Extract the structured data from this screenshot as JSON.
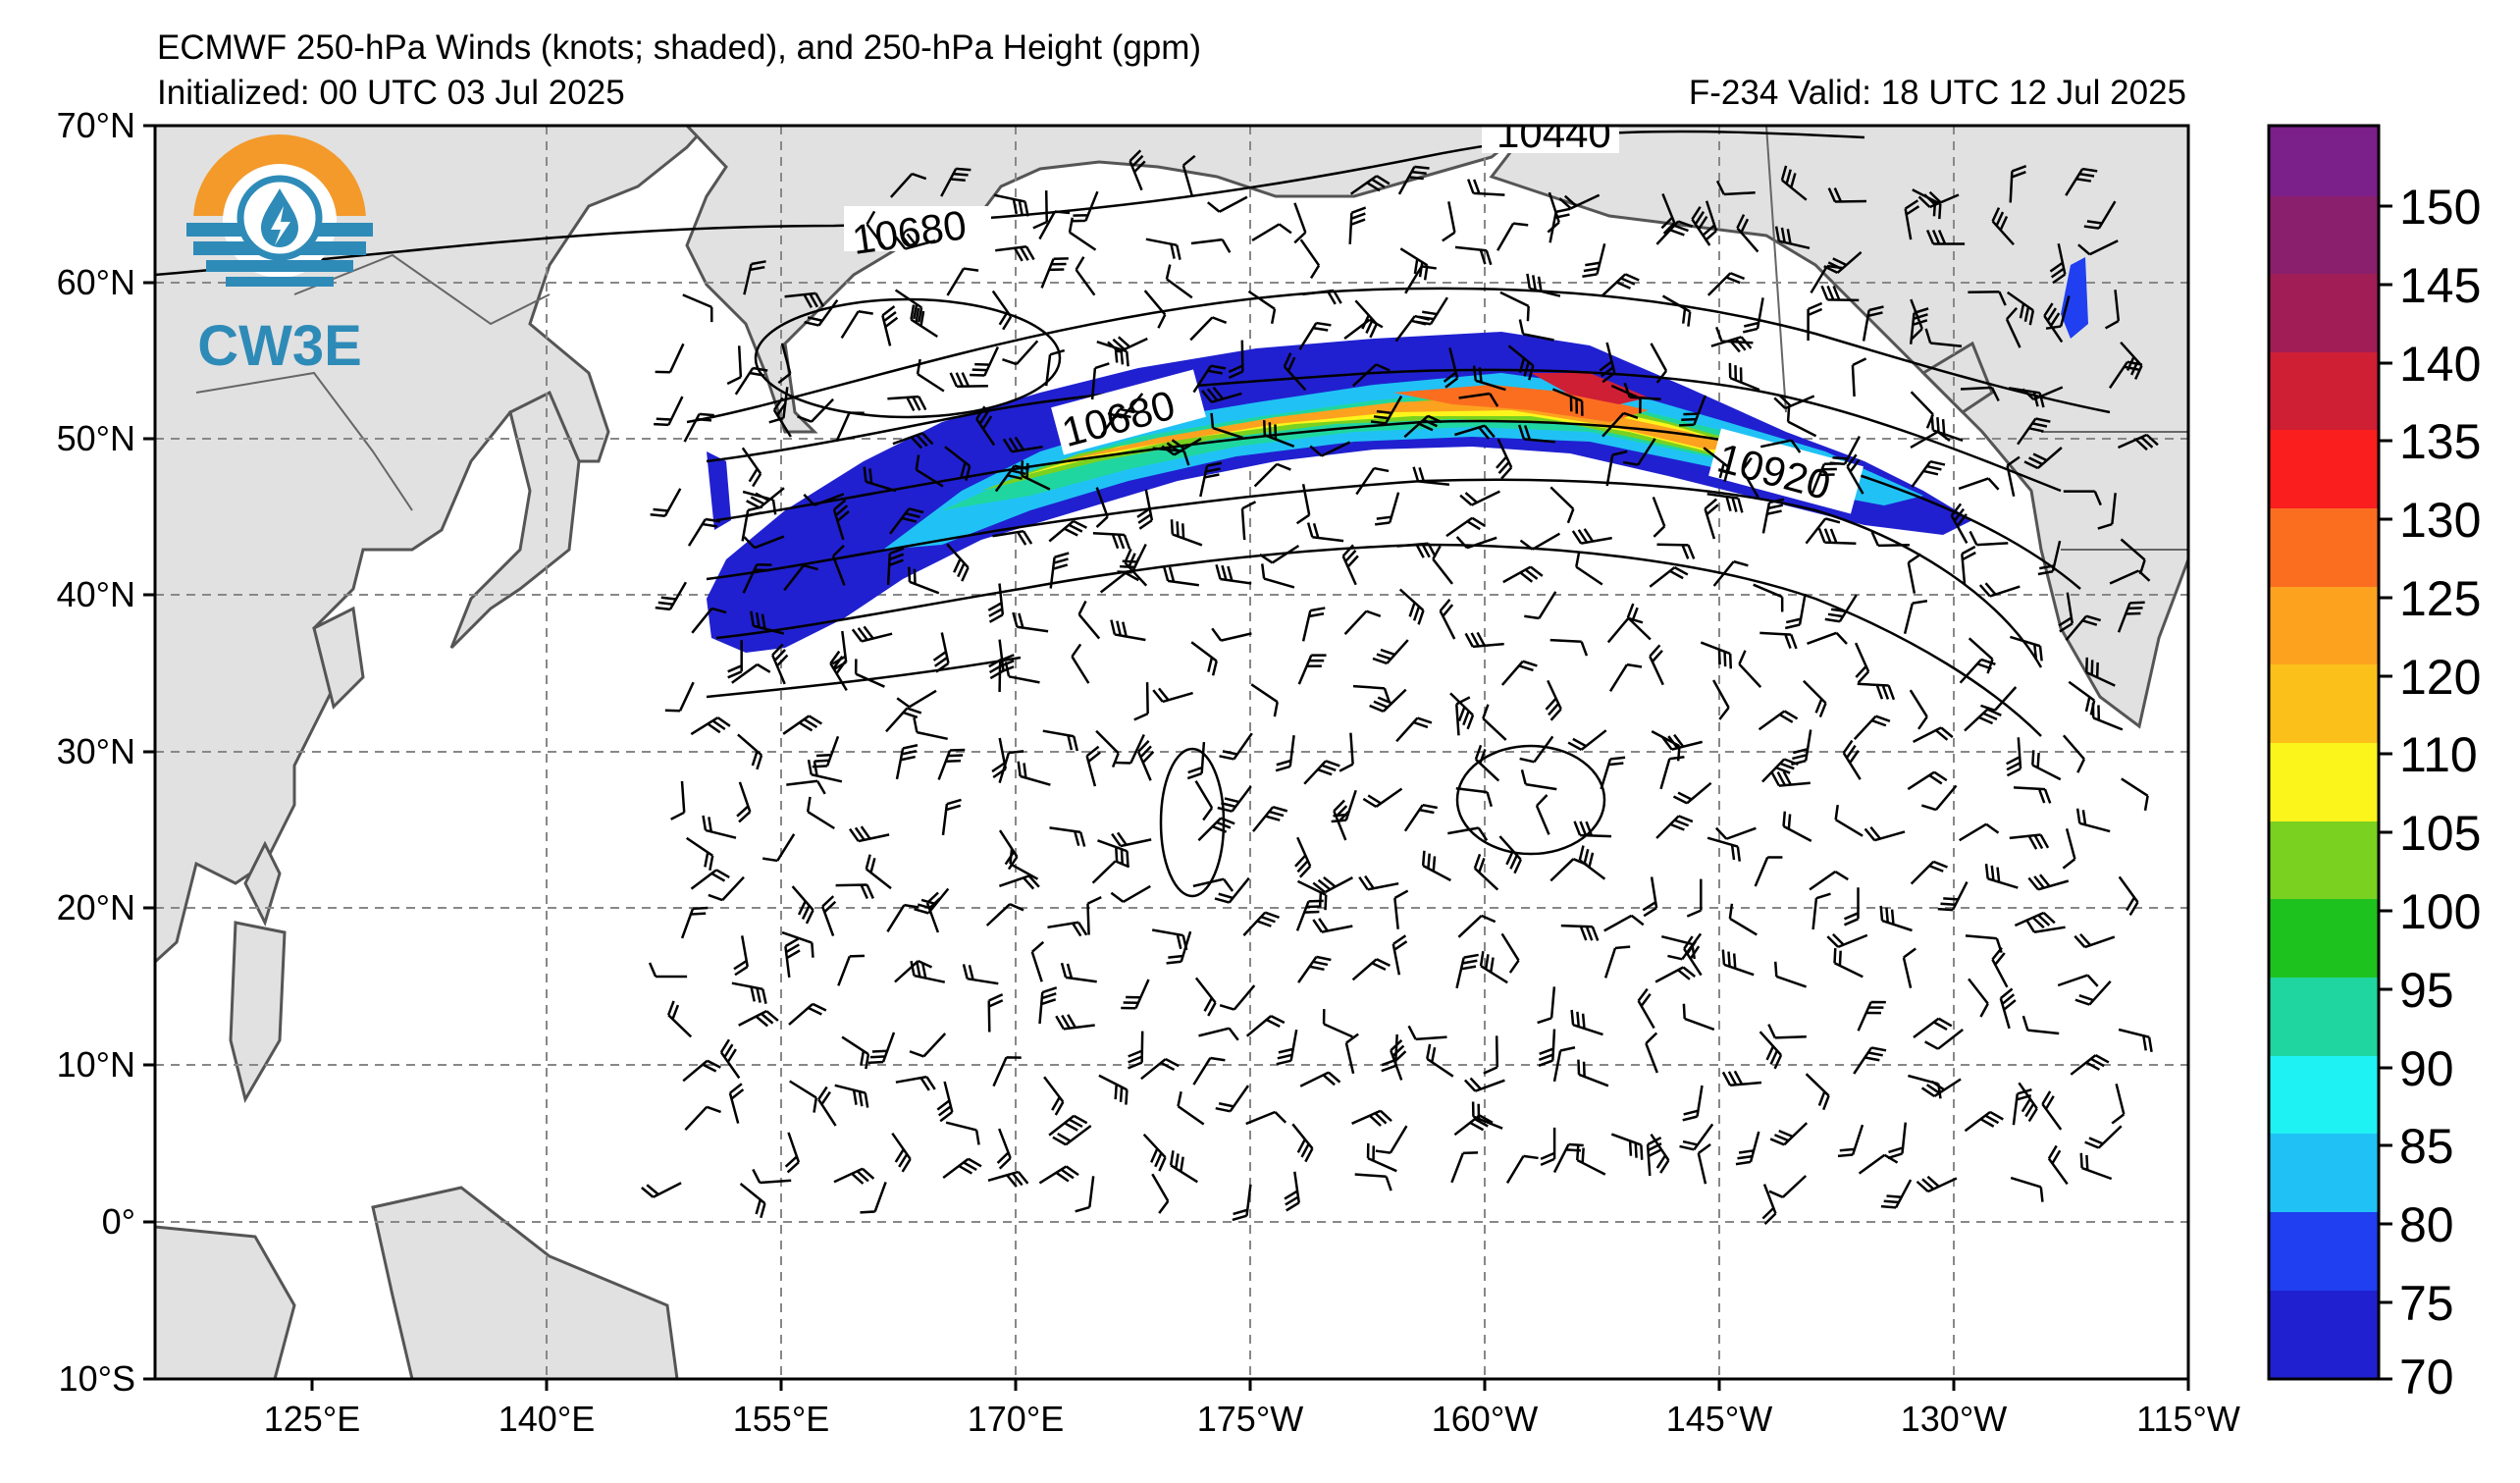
{
  "header": {
    "title": "ECMWF 250-hPa Winds (knots; shaded), and 250-hPa Height (gpm)",
    "initialized": "Initialized: 00 UTC 03 Jul 2025",
    "valid": "F-234  Valid: 18 UTC 12 Jul 2025"
  },
  "logo": {
    "text": "CW3E",
    "colors": {
      "sun": "#f39a2b",
      "water": "#2e8bb8",
      "drop": "#2e8bb8"
    }
  },
  "axes": {
    "lat_labels": [
      "70°N",
      "60°N",
      "50°N",
      "40°N",
      "30°N",
      "20°N",
      "10°N",
      "0°",
      "10°S"
    ],
    "lon_labels": [
      "125°E",
      "140°E",
      "155°E",
      "170°E",
      "175°W",
      "160°W",
      "145°W",
      "130°W",
      "115°W"
    ]
  },
  "contour_labels": [
    "10440",
    "10680",
    "10680",
    "10920"
  ],
  "colorbar": {
    "ticks": [
      "150",
      "145",
      "140",
      "135",
      "130",
      "125",
      "120",
      "110",
      "105",
      "100",
      "95",
      "90",
      "85",
      "80",
      "75",
      "70"
    ],
    "colors": [
      "#7b1f8a",
      "#8a1f6e",
      "#a01e55",
      "#cf1f35",
      "#fa1e1e",
      "#fb6e20",
      "#fca21f",
      "#fcc01b",
      "#fcf51c",
      "#7ad11f",
      "#1ec21f",
      "#20d6a0",
      "#1ff2f2",
      "#20c2f5",
      "#1f3ff0",
      "#2020d0"
    ]
  },
  "chart_data": {
    "type": "map",
    "title": "ECMWF 250-hPa Winds (knots; shaded), and 250-hPa Height (gpm)",
    "wind_shading_knots": [
      70,
      75,
      80,
      85,
      90,
      95,
      100,
      105,
      110,
      120,
      125,
      130,
      135,
      140,
      145,
      150
    ],
    "height_contours_gpm": [
      10440,
      10680,
      10920
    ],
    "lon_range": [
      "115°E",
      "115°W"
    ],
    "lat_range": [
      "10°S",
      "70°N"
    ]
  }
}
